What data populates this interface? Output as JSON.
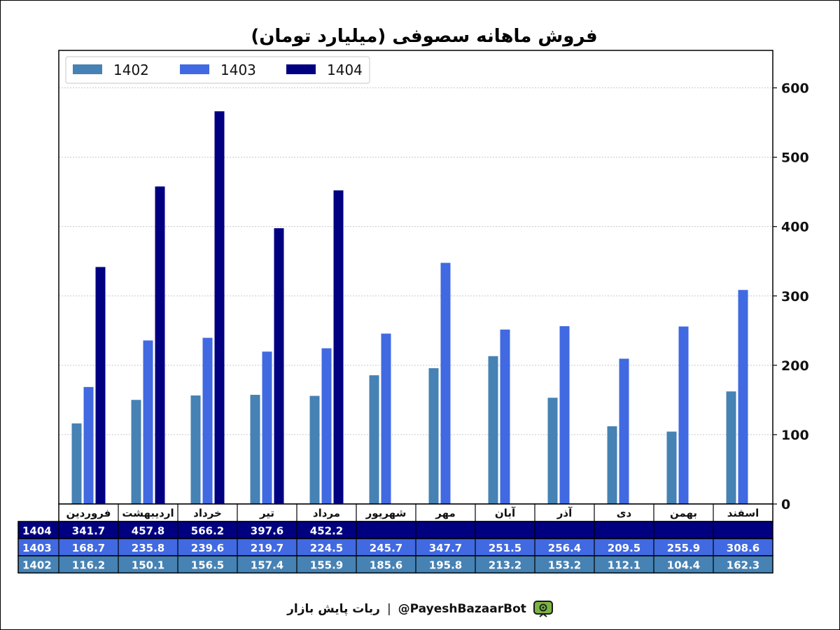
{
  "chart_data": {
    "type": "bar",
    "title": "فروش ماهانه سصوفی (میلیارد تومان)",
    "categories": [
      "فروردین",
      "اردیبهشت",
      "خرداد",
      "تیر",
      "مرداد",
      "شهریور",
      "مهر",
      "آبان",
      "آذر",
      "دی",
      "بهمن",
      "اسفند"
    ],
    "series": [
      {
        "name": "1402",
        "color": "#4682B4",
        "values": [
          116.2,
          150.1,
          156.5,
          157.4,
          155.9,
          185.6,
          195.8,
          213.2,
          153.2,
          112.1,
          104.4,
          162.3
        ]
      },
      {
        "name": "1403",
        "color": "#4169E1",
        "values": [
          168.7,
          235.8,
          239.6,
          219.7,
          224.5,
          245.7,
          347.7,
          251.5,
          256.4,
          209.5,
          255.9,
          308.6
        ]
      },
      {
        "name": "1404",
        "color": "#000080",
        "values": [
          341.7,
          457.8,
          566.2,
          397.6,
          452.2,
          null,
          null,
          null,
          null,
          null,
          null,
          null
        ]
      }
    ],
    "ylim": [
      0,
      654
    ],
    "yticks": [
      0,
      100,
      200,
      300,
      400,
      500,
      600
    ],
    "y_axis_side": "right",
    "grid": true,
    "legend_position": "top-left",
    "data_table": {
      "rows": [
        "1404",
        "1403",
        "1402"
      ],
      "row_colors": {
        "1404": "#000080",
        "1403": "#4169E1",
        "1402": "#4682B4"
      },
      "values": {
        "1404": [
          "341.7",
          "457.8",
          "566.2",
          "397.6",
          "452.2",
          "",
          "",
          "",
          "",
          "",
          "",
          ""
        ],
        "1403": [
          "168.7",
          "235.8",
          "239.6",
          "219.7",
          "224.5",
          "245.7",
          "347.7",
          "251.5",
          "256.4",
          "209.5",
          "255.9",
          "308.6"
        ],
        "1402": [
          "116.2",
          "150.1",
          "156.5",
          "157.4",
          "155.9",
          "185.6",
          "195.8",
          "213.2",
          "153.2",
          "112.1",
          "104.4",
          "162.3"
        ]
      }
    }
  },
  "footer": {
    "bot_name": "ربات پایش بازار",
    "separator": "|",
    "handle": "@PayeshBazaarBot",
    "logo_icon": "tv-robot-icon"
  }
}
